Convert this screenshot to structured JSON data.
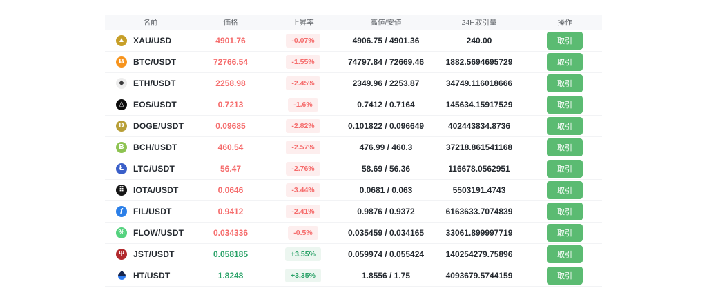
{
  "table": {
    "headers": [
      "名前",
      "価格",
      "上昇率",
      "高値/安値",
      "24H取引量",
      "操作"
    ],
    "action_label": "取引",
    "rows": [
      {
        "pair": "XAU/USD",
        "price": "4901.76",
        "trend": "down",
        "change": "-0.07%",
        "high_low": "4906.75 / 4901.36",
        "volume": "240.00",
        "icon": {
          "name": "xau-coin-icon",
          "glyph": "▲",
          "bg": "#c79f28",
          "fg": "#ffffff"
        }
      },
      {
        "pair": "BTC/USDT",
        "price": "72766.54",
        "trend": "down",
        "change": "-1.55%",
        "high_low": "74797.84 / 72669.46",
        "volume": "1882.5694695729",
        "icon": {
          "name": "btc-coin-icon",
          "glyph": "Ƀ",
          "bg": "#f7941d",
          "fg": "#ffffff"
        }
      },
      {
        "pair": "ETH/USDT",
        "price": "2258.98",
        "trend": "down",
        "change": "-2.45%",
        "high_low": "2349.96 / 2253.87",
        "volume": "34749.116018666",
        "icon": {
          "name": "eth-coin-icon",
          "glyph": "◆",
          "bg": "#ededed",
          "fg": "#3c3c3d"
        }
      },
      {
        "pair": "EOS/USDT",
        "price": "0.7213",
        "trend": "down",
        "change": "-1.6%",
        "high_low": "0.7412 / 0.7164",
        "volume": "145634.15917529",
        "icon": {
          "name": "eos-coin-icon",
          "glyph": "△",
          "bg": "#0b0b0b",
          "fg": "#ffffff"
        }
      },
      {
        "pair": "DOGE/USDT",
        "price": "0.09685",
        "trend": "down",
        "change": "-2.82%",
        "high_low": "0.101822 / 0.096649",
        "volume": "402443834.8736",
        "icon": {
          "name": "doge-coin-icon",
          "glyph": "Ð",
          "bg": "#b89f37",
          "fg": "#ffffff"
        }
      },
      {
        "pair": "BCH/USDT",
        "price": "460.54",
        "trend": "down",
        "change": "-2.57%",
        "high_low": "476.99 / 460.3",
        "volume": "37218.861541168",
        "icon": {
          "name": "bch-coin-icon",
          "glyph": "Ƀ",
          "bg": "#8dc351",
          "fg": "#ffffff"
        }
      },
      {
        "pair": "LTC/USDT",
        "price": "56.47",
        "trend": "down",
        "change": "-2.76%",
        "high_low": "58.69 / 56.36",
        "volume": "116678.0562951",
        "icon": {
          "name": "ltc-coin-icon",
          "glyph": "Ł",
          "bg": "#3a5fc9",
          "fg": "#ffffff"
        }
      },
      {
        "pair": "IOTA/USDT",
        "price": "0.0646",
        "trend": "down",
        "change": "-3.44%",
        "high_low": "0.0681 / 0.063",
        "volume": "5503191.4743",
        "icon": {
          "name": "iota-coin-icon",
          "glyph": "⠿",
          "bg": "#161616",
          "fg": "#ffffff"
        }
      },
      {
        "pair": "FIL/USDT",
        "price": "0.9412",
        "trend": "down",
        "change": "-2.41%",
        "high_low": "0.9876 / 0.9372",
        "volume": "6163633.7074839",
        "icon": {
          "name": "fil-coin-icon",
          "glyph": "ƒ",
          "bg": "#2b7fe8",
          "fg": "#ffffff"
        }
      },
      {
        "pair": "FLOW/USDT",
        "price": "0.034336",
        "trend": "down",
        "change": "-0.5%",
        "high_low": "0.035459 / 0.034165",
        "volume": "33061.899997719",
        "icon": {
          "name": "flow-coin-icon",
          "glyph": "%",
          "bg": "#54d27e",
          "fg": "#ffffff"
        }
      },
      {
        "pair": "JST/USDT",
        "price": "0.058185",
        "trend": "up",
        "change": "+3.55%",
        "high_low": "0.059974 / 0.055424",
        "volume": "140254279.75896",
        "icon": {
          "name": "jst-coin-icon",
          "glyph": "Ψ",
          "bg": "#b2292d",
          "fg": "#ffffff"
        }
      },
      {
        "pair": "HT/USDT",
        "price": "1.8248",
        "trend": "up",
        "change": "+3.35%",
        "high_low": "1.8556 / 1.75",
        "volume": "4093679.5744159",
        "icon": {
          "name": "ht-flame-icon",
          "shape": "flame"
        }
      }
    ]
  },
  "colors": {
    "down_text": "#f56c6c",
    "down_bg": "#fdeeee",
    "up_text": "#2aa268",
    "up_bg": "#ecf6f0",
    "button_bg": "#5bbb72",
    "header_bg": "#f7f8fa"
  }
}
